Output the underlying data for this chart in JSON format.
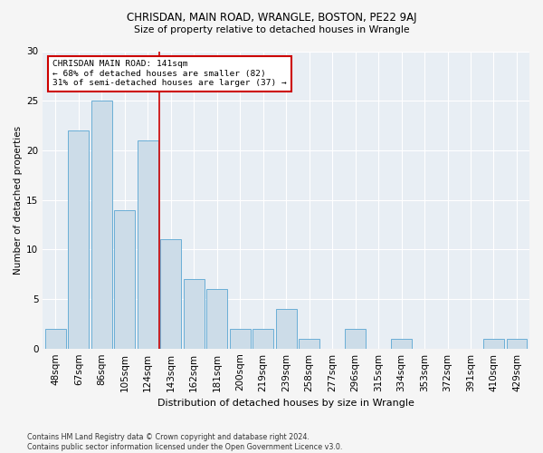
{
  "title1": "CHRISDAN, MAIN ROAD, WRANGLE, BOSTON, PE22 9AJ",
  "title2": "Size of property relative to detached houses in Wrangle",
  "xlabel": "Distribution of detached houses by size in Wrangle",
  "ylabel": "Number of detached properties",
  "categories": [
    "48sqm",
    "67sqm",
    "86sqm",
    "105sqm",
    "124sqm",
    "143sqm",
    "162sqm",
    "181sqm",
    "200sqm",
    "219sqm",
    "239sqm",
    "258sqm",
    "277sqm",
    "296sqm",
    "315sqm",
    "334sqm",
    "353sqm",
    "372sqm",
    "391sqm",
    "410sqm",
    "429sqm"
  ],
  "values": [
    2,
    22,
    25,
    14,
    21,
    11,
    7,
    6,
    2,
    2,
    4,
    1,
    0,
    2,
    0,
    1,
    0,
    0,
    0,
    1,
    1
  ],
  "bar_color": "#ccdce8",
  "bar_edge_color": "#6aaed6",
  "ax_facecolor": "#e8eef4",
  "fig_facecolor": "#f5f5f5",
  "annotation_text": "CHRISDAN MAIN ROAD: 141sqm\n← 68% of detached houses are smaller (82)\n31% of semi-detached houses are larger (37) →",
  "vline_x_index": 4.5,
  "vline_color": "#cc0000",
  "box_color": "#cc0000",
  "ylim": [
    0,
    30
  ],
  "yticks": [
    0,
    5,
    10,
    15,
    20,
    25,
    30
  ],
  "footer": "Contains HM Land Registry data © Crown copyright and database right 2024.\nContains public sector information licensed under the Open Government Licence v3.0."
}
